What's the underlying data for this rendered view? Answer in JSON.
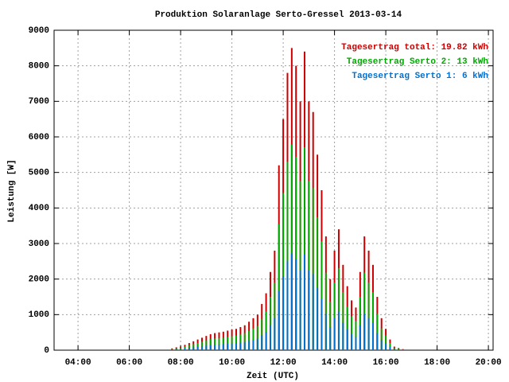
{
  "chart_data": {
    "type": "bar",
    "title": "Produktion Solaranlage Serto-Gressel 2013-03-14",
    "xlabel": "Zeit (UTC)",
    "ylabel": "Leistung [W]",
    "x": [
      460,
      470,
      480,
      490,
      500,
      510,
      520,
      530,
      540,
      550,
      560,
      570,
      580,
      590,
      600,
      610,
      620,
      630,
      640,
      650,
      660,
      670,
      680,
      690,
      700,
      710,
      720,
      730,
      740,
      750,
      760,
      770,
      780,
      790,
      800,
      810,
      820,
      830,
      840,
      850,
      860,
      870,
      880,
      890,
      900,
      910,
      920,
      930,
      940,
      950,
      960,
      970,
      980,
      990,
      1000
    ],
    "series": [
      {
        "name": "Tagesertrag total: 19.82 kWh",
        "color": "#cc0000",
        "values": [
          50,
          80,
          100,
          150,
          200,
          250,
          300,
          350,
          400,
          450,
          480,
          500,
          520,
          550,
          580,
          600,
          650,
          700,
          800,
          900,
          1000,
          1300,
          1600,
          2200,
          2800,
          5200,
          6500,
          7800,
          8500,
          8000,
          7000,
          8400,
          7000,
          6700,
          5500,
          4500,
          3200,
          2000,
          2800,
          3400,
          2400,
          1800,
          1400,
          1200,
          2200,
          3200,
          2800,
          2400,
          1500,
          900,
          600,
          300,
          100,
          60,
          30
        ]
      },
      {
        "name": "Tagesertrag Serto 2: 13 kWh",
        "color": "#00a800",
        "values": [
          30,
          50,
          70,
          100,
          140,
          170,
          200,
          240,
          270,
          310,
          330,
          340,
          350,
          370,
          390,
          410,
          440,
          480,
          540,
          610,
          680,
          880,
          1090,
          1500,
          1900,
          3540,
          4420,
          5300,
          5780,
          5440,
          4760,
          5710,
          4760,
          4560,
          3740,
          3060,
          2180,
          1360,
          1900,
          2310,
          1630,
          1220,
          950,
          820,
          1500,
          2180,
          1900,
          1630,
          1020,
          610,
          410,
          200,
          70,
          40,
          20
        ]
      },
      {
        "name": "Tagesertrag Serto 1: 6 kWh",
        "color": "#0070d0",
        "values": [
          20,
          30,
          30,
          50,
          60,
          80,
          100,
          110,
          130,
          140,
          150,
          160,
          170,
          180,
          190,
          190,
          210,
          220,
          260,
          290,
          320,
          420,
          510,
          700,
          900,
          1660,
          2080,
          2500,
          2720,
          2560,
          2240,
          2690,
          2240,
          2140,
          1760,
          1440,
          1020,
          640,
          900,
          1090,
          770,
          580,
          450,
          380,
          700,
          1020,
          900,
          770,
          480,
          290,
          190,
          100,
          30,
          20,
          10
        ]
      }
    ],
    "xlim": [
      184,
      1211
    ],
    "xticks": [
      {
        "value": 240,
        "label": "04:00"
      },
      {
        "value": 360,
        "label": "06:00"
      },
      {
        "value": 480,
        "label": "08:00"
      },
      {
        "value": 600,
        "label": "10:00"
      },
      {
        "value": 720,
        "label": "12:00"
      },
      {
        "value": 840,
        "label": "14:00"
      },
      {
        "value": 960,
        "label": "16:00"
      },
      {
        "value": 1080,
        "label": "18:00"
      },
      {
        "value": 1200,
        "label": "20:00"
      }
    ],
    "ylim": [
      0,
      9000
    ],
    "yticks": [
      0,
      1000,
      2000,
      3000,
      4000,
      5000,
      6000,
      7000,
      8000,
      9000
    ],
    "grid": true,
    "legend": "upper right"
  }
}
